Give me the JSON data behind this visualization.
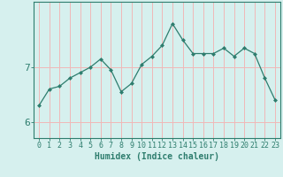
{
  "x": [
    0,
    1,
    2,
    3,
    4,
    5,
    6,
    7,
    8,
    9,
    10,
    11,
    12,
    13,
    14,
    15,
    16,
    17,
    18,
    19,
    20,
    21,
    22,
    23
  ],
  "y": [
    6.3,
    6.6,
    6.65,
    6.8,
    6.9,
    7.0,
    7.15,
    6.95,
    6.55,
    6.7,
    7.05,
    7.2,
    7.4,
    7.8,
    7.5,
    7.25,
    7.25,
    7.25,
    7.35,
    7.2,
    7.35,
    7.25,
    6.8,
    6.4
  ],
  "xlabel": "Humidex (Indice chaleur)",
  "yticks": [
    6,
    7
  ],
  "xlim": [
    -0.5,
    23.5
  ],
  "ylim": [
    5.7,
    8.2
  ],
  "line_color": "#2e7d6e",
  "marker": "D",
  "marker_size": 2,
  "bg_color": "#d6f0ee",
  "grid_color": "#f0b8b8",
  "axis_color": "#2e7d6e",
  "tick_fontsize": 6,
  "xlabel_fontsize": 7
}
